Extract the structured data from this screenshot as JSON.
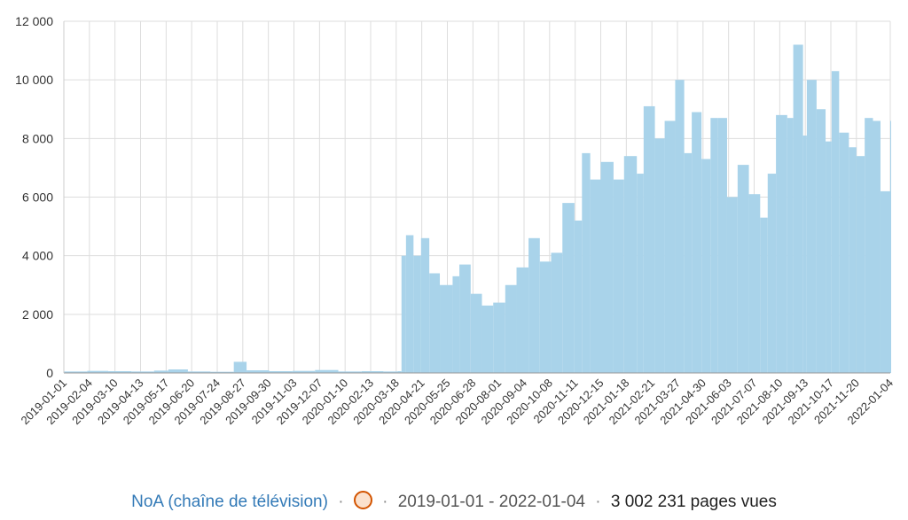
{
  "chart_data": {
    "type": "bar",
    "ylim": [
      0,
      12000
    ],
    "yticks": [
      {
        "value": 0,
        "label": "0"
      },
      {
        "value": 2000,
        "label": "2 000"
      },
      {
        "value": 4000,
        "label": "4 000"
      },
      {
        "value": 6000,
        "label": "6 000"
      },
      {
        "value": 8000,
        "label": "8 000"
      },
      {
        "value": 10000,
        "label": "10 000"
      },
      {
        "value": 12000,
        "label": "12 000"
      }
    ],
    "date_start": "2019-01-01",
    "date_end": "2022-01-04",
    "xticks": [
      "2019-01-01",
      "2019-02-04",
      "2019-03-10",
      "2019-04-13",
      "2019-05-17",
      "2019-06-20",
      "2019-07-24",
      "2019-08-27",
      "2019-09-30",
      "2019-11-03",
      "2019-12-07",
      "2020-01-10",
      "2020-02-13",
      "2020-03-18",
      "2020-04-21",
      "2020-05-25",
      "2020-06-28",
      "2020-08-01",
      "2020-09-04",
      "2020-10-08",
      "2020-11-11",
      "2020-12-15",
      "2021-01-18",
      "2021-02-21",
      "2021-03-27",
      "2021-04-30",
      "2021-06-03",
      "2021-07-07",
      "2021-08-10",
      "2021-09-13",
      "2021-10-17",
      "2021-11-20",
      "2022-01-04"
    ],
    "series": [
      {
        "color": "#a9d3ea",
        "values": [
          {
            "x": "2019-01-01",
            "y": 50
          },
          {
            "x": "2019-02-01",
            "y": 70
          },
          {
            "x": "2019-03-01",
            "y": 60
          },
          {
            "x": "2019-04-01",
            "y": 50
          },
          {
            "x": "2019-05-01",
            "y": 80
          },
          {
            "x": "2019-05-20",
            "y": 120
          },
          {
            "x": "2019-06-15",
            "y": 50
          },
          {
            "x": "2019-07-15",
            "y": 40
          },
          {
            "x": "2019-08-15",
            "y": 380
          },
          {
            "x": "2019-09-01",
            "y": 90
          },
          {
            "x": "2019-10-01",
            "y": 60
          },
          {
            "x": "2019-11-01",
            "y": 70
          },
          {
            "x": "2019-12-01",
            "y": 100
          },
          {
            "x": "2020-01-01",
            "y": 50
          },
          {
            "x": "2020-02-01",
            "y": 60
          },
          {
            "x": "2020-03-01",
            "y": 50
          },
          {
            "x": "2020-03-20",
            "y": 60
          },
          {
            "x": "2020-03-25",
            "y": 4000
          },
          {
            "x": "2020-03-31",
            "y": 4700
          },
          {
            "x": "2020-04-10",
            "y": 4000
          },
          {
            "x": "2020-04-20",
            "y": 4600
          },
          {
            "x": "2020-05-01",
            "y": 3400
          },
          {
            "x": "2020-05-15",
            "y": 3000
          },
          {
            "x": "2020-06-01",
            "y": 3300
          },
          {
            "x": "2020-06-10",
            "y": 3700
          },
          {
            "x": "2020-06-25",
            "y": 2700
          },
          {
            "x": "2020-07-10",
            "y": 2300
          },
          {
            "x": "2020-07-25",
            "y": 2400
          },
          {
            "x": "2020-08-10",
            "y": 3000
          },
          {
            "x": "2020-08-25",
            "y": 3600
          },
          {
            "x": "2020-09-10",
            "y": 4600
          },
          {
            "x": "2020-09-25",
            "y": 3800
          },
          {
            "x": "2020-10-10",
            "y": 4100
          },
          {
            "x": "2020-10-25",
            "y": 5800
          },
          {
            "x": "2020-11-10",
            "y": 5200
          },
          {
            "x": "2020-11-20",
            "y": 7500
          },
          {
            "x": "2020-12-01",
            "y": 6600
          },
          {
            "x": "2020-12-15",
            "y": 7200
          },
          {
            "x": "2021-01-01",
            "y": 6600
          },
          {
            "x": "2021-01-15",
            "y": 7400
          },
          {
            "x": "2021-02-01",
            "y": 6800
          },
          {
            "x": "2021-02-10",
            "y": 9100
          },
          {
            "x": "2021-02-25",
            "y": 8000
          },
          {
            "x": "2021-03-10",
            "y": 8600
          },
          {
            "x": "2021-03-24",
            "y": 10000
          },
          {
            "x": "2021-04-05",
            "y": 7500
          },
          {
            "x": "2021-04-15",
            "y": 8900
          },
          {
            "x": "2021-04-28",
            "y": 7300
          },
          {
            "x": "2021-05-10",
            "y": 8700
          },
          {
            "x": "2021-05-20",
            "y": 8700
          },
          {
            "x": "2021-06-01",
            "y": 6000
          },
          {
            "x": "2021-06-15",
            "y": 7100
          },
          {
            "x": "2021-06-30",
            "y": 6100
          },
          {
            "x": "2021-07-15",
            "y": 5300
          },
          {
            "x": "2021-07-25",
            "y": 6800
          },
          {
            "x": "2021-08-05",
            "y": 8800
          },
          {
            "x": "2021-08-20",
            "y": 8700
          },
          {
            "x": "2021-08-28",
            "y": 11200
          },
          {
            "x": "2021-09-10",
            "y": 8100
          },
          {
            "x": "2021-09-15",
            "y": 10000
          },
          {
            "x": "2021-09-28",
            "y": 9000
          },
          {
            "x": "2021-10-10",
            "y": 7900
          },
          {
            "x": "2021-10-18",
            "y": 10300
          },
          {
            "x": "2021-10-28",
            "y": 8200
          },
          {
            "x": "2021-11-10",
            "y": 7700
          },
          {
            "x": "2021-11-20",
            "y": 7400
          },
          {
            "x": "2021-12-01",
            "y": 8700
          },
          {
            "x": "2021-12-12",
            "y": 8600
          },
          {
            "x": "2021-12-22",
            "y": 6200
          },
          {
            "x": "2022-01-04",
            "y": 8600
          }
        ]
      }
    ]
  },
  "legend": {
    "article": "NoA (chaîne de télévision)",
    "sep1": "·",
    "sep2": "·",
    "date_range": "2019-01-01 - 2022-01-04",
    "sep3": "·",
    "total": "3 002 231 pages vues",
    "marker_color": "#fbe1cd",
    "marker_border": "#d35400"
  }
}
